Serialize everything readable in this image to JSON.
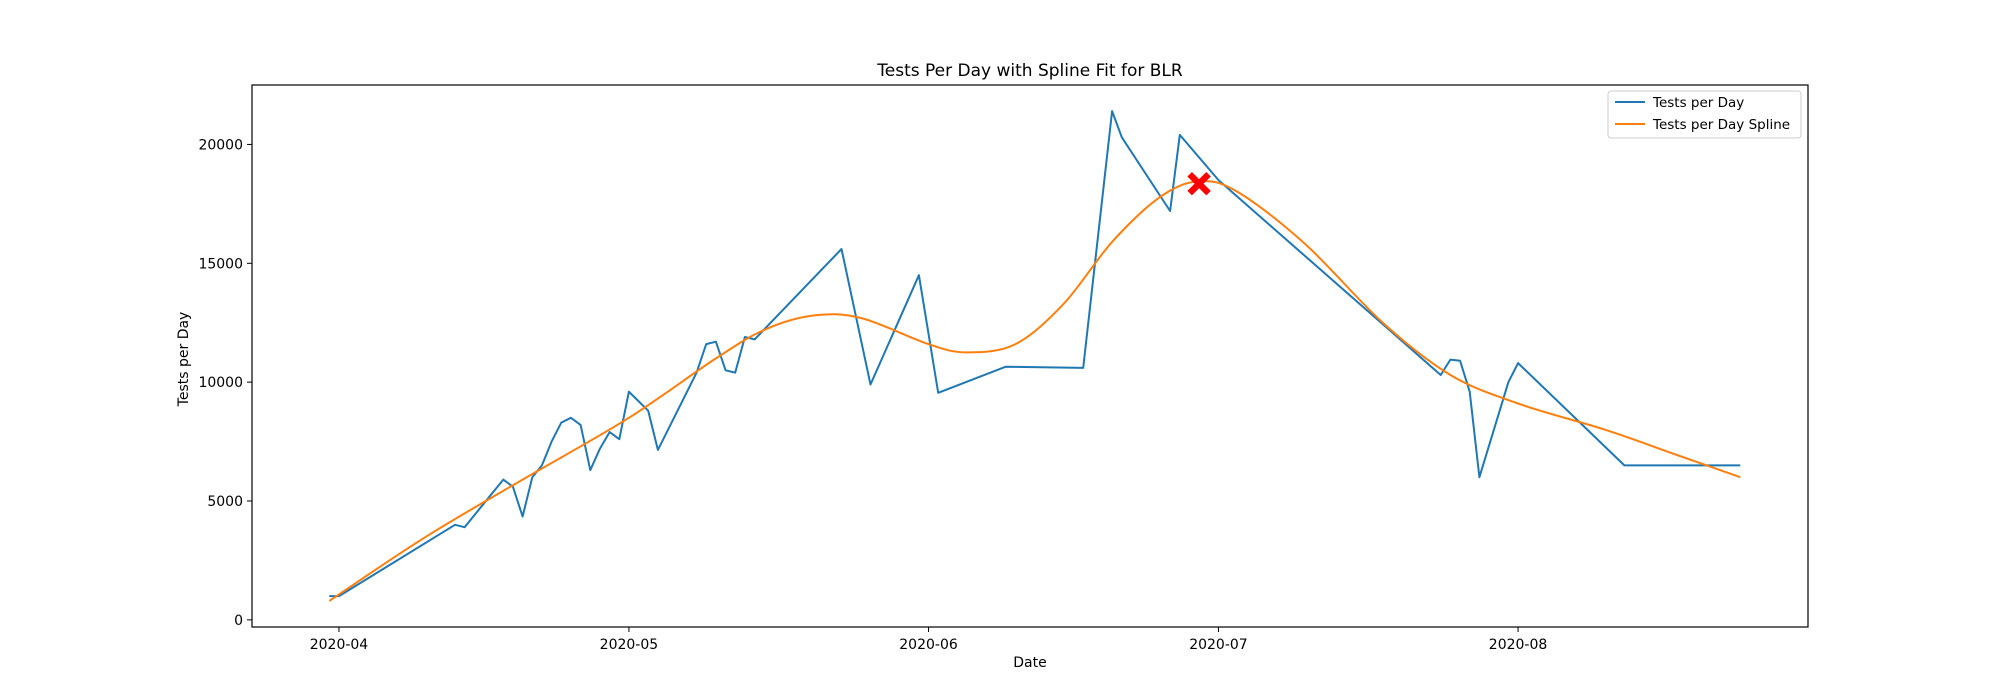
{
  "chart_data": {
    "type": "line",
    "title": "Tests Per Day with Spline Fit for BLR",
    "xlabel": "Date",
    "ylabel": "Tests per Day",
    "xlim": [
      "2020-03-23",
      "2020-08-31"
    ],
    "ylim": [
      -300,
      22500
    ],
    "x_ticks": [
      "2020-04-01",
      "2020-05-01",
      "2020-06-01",
      "2020-07-01",
      "2020-08-01"
    ],
    "x_tick_labels": [
      "2020-04",
      "2020-05",
      "2020-06",
      "2020-07",
      "2020-08"
    ],
    "y_ticks": [
      0,
      5000,
      10000,
      15000,
      20000
    ],
    "y_tick_labels": [
      "0",
      "5000",
      "10000",
      "15000",
      "20000"
    ],
    "grid": false,
    "legend_position": "top-right",
    "series": [
      {
        "name": "Tests per Day",
        "color": "#1f77b4",
        "points": [
          [
            "2020-03-31",
            1000
          ],
          [
            "2020-04-01",
            1000
          ],
          [
            "2020-04-13",
            4000
          ],
          [
            "2020-04-14",
            3900
          ],
          [
            "2020-04-18",
            5900
          ],
          [
            "2020-04-19",
            5600
          ],
          [
            "2020-04-20",
            4350
          ],
          [
            "2020-04-21",
            6000
          ],
          [
            "2020-04-22",
            6500
          ],
          [
            "2020-04-23",
            7500
          ],
          [
            "2020-04-24",
            8300
          ],
          [
            "2020-04-25",
            8500
          ],
          [
            "2020-04-26",
            8200
          ],
          [
            "2020-04-27",
            6300
          ],
          [
            "2020-04-28",
            7200
          ],
          [
            "2020-04-29",
            7900
          ],
          [
            "2020-04-30",
            7600
          ],
          [
            "2020-05-01",
            9600
          ],
          [
            "2020-05-03",
            8800
          ],
          [
            "2020-05-04",
            7150
          ],
          [
            "2020-05-08",
            10400
          ],
          [
            "2020-05-09",
            11600
          ],
          [
            "2020-05-10",
            11700
          ],
          [
            "2020-05-11",
            10500
          ],
          [
            "2020-05-12",
            10400
          ],
          [
            "2020-05-13",
            11900
          ],
          [
            "2020-05-14",
            11800
          ],
          [
            "2020-05-23",
            15600
          ],
          [
            "2020-05-26",
            9900
          ],
          [
            "2020-05-31",
            14500
          ],
          [
            "2020-06-02",
            9550
          ],
          [
            "2020-06-09",
            10650
          ],
          [
            "2020-06-17",
            10600
          ],
          [
            "2020-06-20",
            21400
          ],
          [
            "2020-06-21",
            20300
          ],
          [
            "2020-06-26",
            17200
          ],
          [
            "2020-06-27",
            20400
          ],
          [
            "2020-07-01",
            18500
          ],
          [
            "2020-07-24",
            10300
          ],
          [
            "2020-07-25",
            10950
          ],
          [
            "2020-07-26",
            10900
          ],
          [
            "2020-07-27",
            9600
          ],
          [
            "2020-07-28",
            6000
          ],
          [
            "2020-07-31",
            10000
          ],
          [
            "2020-08-01",
            10800
          ],
          [
            "2020-08-12",
            6500
          ],
          [
            "2020-08-24",
            6500
          ]
        ]
      },
      {
        "name": "Tests per Day Spline",
        "color": "#ff7f0e",
        "points": [
          [
            "2020-03-31",
            800
          ],
          [
            "2020-04-10",
            3500
          ],
          [
            "2020-04-20",
            5900
          ],
          [
            "2020-05-01",
            8500
          ],
          [
            "2020-05-10",
            11000
          ],
          [
            "2020-05-15",
            12200
          ],
          [
            "2020-05-20",
            12800
          ],
          [
            "2020-05-25",
            12700
          ],
          [
            "2020-06-01",
            11600
          ],
          [
            "2020-06-05",
            11250
          ],
          [
            "2020-06-10",
            11600
          ],
          [
            "2020-06-15",
            13300
          ],
          [
            "2020-06-20",
            15900
          ],
          [
            "2020-06-25",
            17800
          ],
          [
            "2020-06-29",
            18450
          ],
          [
            "2020-07-03",
            18000
          ],
          [
            "2020-07-10",
            15800
          ],
          [
            "2020-07-18",
            12500
          ],
          [
            "2020-07-25",
            10300
          ],
          [
            "2020-08-01",
            9100
          ],
          [
            "2020-08-10",
            8000
          ],
          [
            "2020-08-17",
            7000
          ],
          [
            "2020-08-24",
            6000
          ]
        ]
      }
    ],
    "markers": [
      {
        "date": "2020-06-29",
        "value": 18350,
        "shape": "x",
        "color": "#ff0000"
      }
    ]
  }
}
